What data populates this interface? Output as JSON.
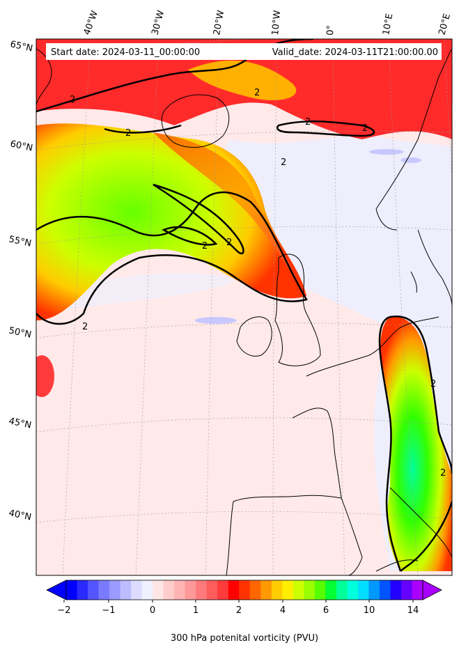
{
  "header": {
    "start_date": "Start date: 2024-03-11_00:00:00",
    "valid_date": "Valid_date: 2024-03-11T21:00:00.00"
  },
  "lon_labels": [
    "40°W",
    "30°W",
    "20°W",
    "10°W",
    "0°",
    "10°E",
    "20°E"
  ],
  "lat_labels": [
    "65°N",
    "60°N",
    "55°N",
    "50°N",
    "45°N",
    "40°N"
  ],
  "contour_label": "2",
  "colorbar": {
    "ticks": [
      "−2",
      "−1",
      "0",
      "1",
      "2",
      "4",
      "6",
      "10",
      "14"
    ],
    "label": "300 hPa potenital vorticity (PVU)",
    "colors": [
      "#0000ff",
      "#2a2aff",
      "#5555ff",
      "#7a7aff",
      "#9a9aff",
      "#bcbcff",
      "#dcdcff",
      "#f0f0ff",
      "#ffe6e6",
      "#ffcccc",
      "#ffb3b3",
      "#ff9999",
      "#ff7a7a",
      "#ff5c5c",
      "#ff3b3b",
      "#ff0000",
      "#ff3300",
      "#ff6600",
      "#ff9900",
      "#ffcc00",
      "#ffee00",
      "#ccff00",
      "#99ff00",
      "#55ff00",
      "#00ff33",
      "#00ff99",
      "#00ffdd",
      "#00ddff",
      "#0099ff",
      "#0055ff",
      "#2200ff",
      "#6600ff",
      "#aa00ff"
    ]
  },
  "legend_levels": {
    "min": -2,
    "max": 14,
    "contour_value": 2
  }
}
